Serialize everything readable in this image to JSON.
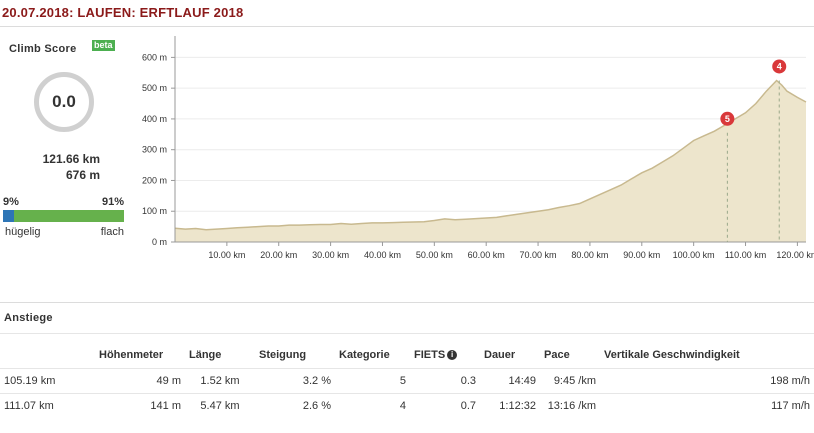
{
  "header": {
    "title": "20.07.2018: LAUFEN: ERFTLAUF 2018"
  },
  "climb_score": {
    "label": "Climb Score",
    "beta": "beta",
    "value": "0.0",
    "distance": "121.66 km",
    "elevation": "676 m",
    "hilly_pct_label": "9%",
    "flat_pct_label": "91%",
    "hilly_fraction": 0.09,
    "hilly_label": "hügelig",
    "flat_label": "flach",
    "colors": {
      "hilly": "#2e75b6",
      "flat": "#66b14c"
    }
  },
  "chart_data": {
    "type": "area",
    "xlim": [
      0,
      121.66
    ],
    "ylim": [
      0,
      650
    ],
    "x_ticks": [
      "10.00 km",
      "20.00 km",
      "30.00 km",
      "40.00 km",
      "50.00 km",
      "60.00 km",
      "70.00 km",
      "80.00 km",
      "90.00 km",
      "100.00 km",
      "110.00 km",
      "120.00 km"
    ],
    "y_ticks": [
      "0 m",
      "100 m",
      "200 m",
      "300 m",
      "400 m",
      "500 m",
      "600 m"
    ],
    "profile": {
      "x": [
        0,
        2,
        4,
        6,
        8,
        10,
        12,
        14,
        16,
        18,
        20,
        22,
        24,
        26,
        28,
        30,
        32,
        34,
        36,
        38,
        40,
        42,
        44,
        46,
        48,
        50,
        52,
        54,
        56,
        58,
        60,
        62,
        64,
        66,
        68,
        70,
        72,
        74,
        76,
        78,
        80,
        82,
        84,
        86,
        88,
        90,
        92,
        94,
        96,
        98,
        100,
        102,
        104,
        106,
        108,
        110,
        112,
        114,
        116,
        117,
        118,
        120,
        121.66
      ],
      "y": [
        45,
        42,
        44,
        40,
        42,
        44,
        46,
        48,
        50,
        52,
        52,
        55,
        55,
        56,
        57,
        57,
        60,
        58,
        60,
        62,
        62,
        63,
        64,
        65,
        66,
        70,
        75,
        72,
        74,
        76,
        78,
        80,
        85,
        90,
        95,
        100,
        105,
        112,
        118,
        125,
        140,
        155,
        170,
        185,
        205,
        225,
        240,
        260,
        280,
        305,
        330,
        345,
        360,
        380,
        400,
        420,
        450,
        490,
        525,
        510,
        490,
        470,
        455
      ]
    },
    "markers": [
      {
        "label": "5",
        "x": 106.5,
        "y": 355
      },
      {
        "label": "4",
        "x": 116.5,
        "y": 525
      }
    ],
    "colors": {
      "fill": "#ede5cc",
      "line": "#c8b98f",
      "marker": "#d9383a"
    }
  },
  "climbs_section": {
    "title": "Anstiege",
    "columns": [
      "",
      "Höhenmeter",
      "Länge",
      "Steigung",
      "Kategorie",
      "FIETS",
      "Dauer",
      "Pace",
      "Vertikale Geschwindigkeit"
    ],
    "fiets_icon": "i",
    "rows": [
      [
        "105.19 km",
        "49 m",
        "1.52 km",
        "3.2 %",
        "5",
        "0.3",
        "14:49",
        "9:45 /km",
        "198 m/h"
      ],
      [
        "111.07 km",
        "141 m",
        "5.47 km",
        "2.6 %",
        "4",
        "0.7",
        "1:12:32",
        "13:16 /km",
        "117 m/h"
      ]
    ]
  }
}
